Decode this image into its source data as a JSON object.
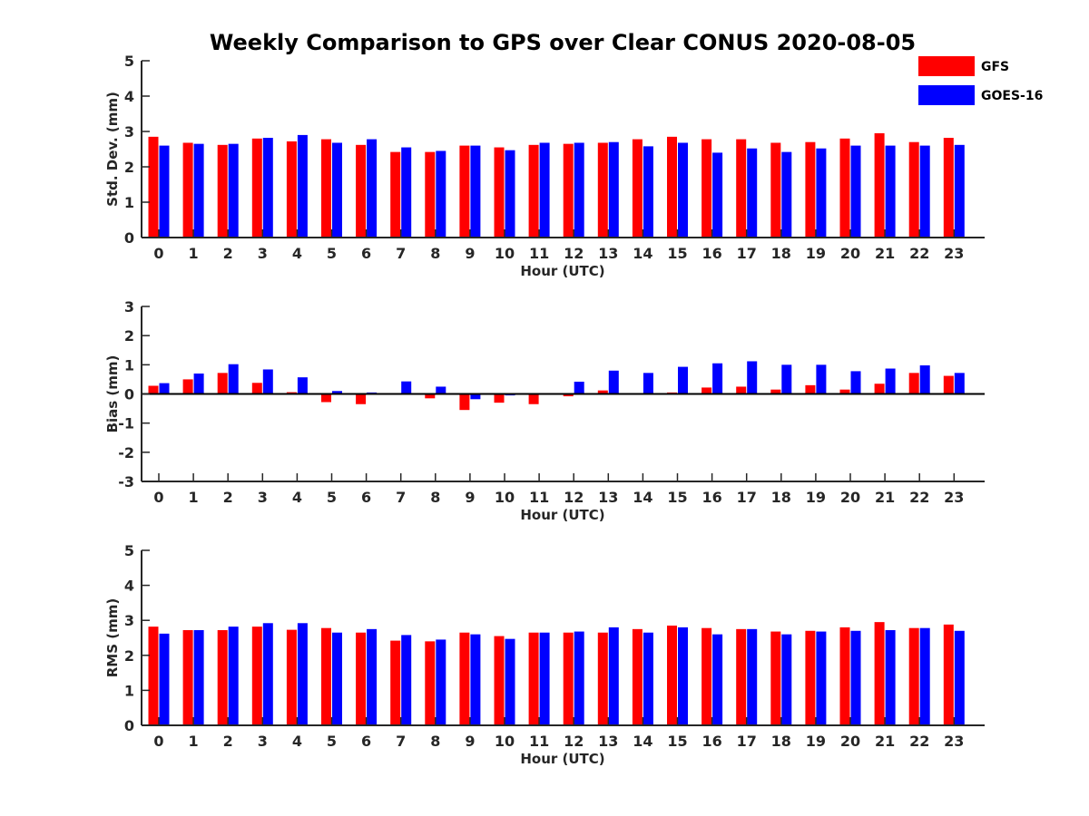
{
  "title": "Weekly Comparison to GPS over Clear CONUS 2020-08-05",
  "colors": {
    "GFS": "#ff0000",
    "GOES-16": "#0000ff"
  },
  "legend": {
    "placement": "top-right",
    "entries": [
      "GFS",
      "GOES-16"
    ]
  },
  "chart_data": [
    {
      "type": "bar",
      "xlabel": "Hour (UTC)",
      "ylabel": "Std. Dev. (mm)",
      "ylim": [
        0,
        5
      ],
      "yticks": [
        0,
        1,
        2,
        3,
        4,
        5
      ],
      "categories": [
        "0",
        "1",
        "2",
        "3",
        "4",
        "5",
        "6",
        "7",
        "8",
        "9",
        "10",
        "11",
        "12",
        "13",
        "14",
        "15",
        "16",
        "17",
        "18",
        "19",
        "20",
        "21",
        "22",
        "23"
      ],
      "series": [
        {
          "name": "GFS",
          "values": [
            2.85,
            2.68,
            2.62,
            2.8,
            2.72,
            2.78,
            2.62,
            2.42,
            2.42,
            2.6,
            2.55,
            2.62,
            2.65,
            2.68,
            2.78,
            2.85,
            2.78,
            2.78,
            2.68,
            2.7,
            2.8,
            2.95,
            2.7,
            2.82
          ]
        },
        {
          "name": "GOES-16",
          "values": [
            2.6,
            2.65,
            2.65,
            2.82,
            2.9,
            2.68,
            2.78,
            2.55,
            2.45,
            2.6,
            2.47,
            2.68,
            2.68,
            2.7,
            2.58,
            2.68,
            2.4,
            2.52,
            2.42,
            2.52,
            2.6,
            2.6,
            2.6,
            2.62
          ]
        }
      ]
    },
    {
      "type": "bar",
      "xlabel": "Hour (UTC)",
      "ylabel": "Bias (mm)",
      "ylim": [
        -3,
        3
      ],
      "yticks": [
        -3,
        -2,
        -1,
        0,
        1,
        2,
        3
      ],
      "categories": [
        "0",
        "1",
        "2",
        "3",
        "4",
        "5",
        "6",
        "7",
        "8",
        "9",
        "10",
        "11",
        "12",
        "13",
        "14",
        "15",
        "16",
        "17",
        "18",
        "19",
        "20",
        "21",
        "22",
        "23"
      ],
      "series": [
        {
          "name": "GFS",
          "values": [
            0.28,
            0.5,
            0.72,
            0.38,
            0.06,
            -0.28,
            -0.35,
            0.03,
            -0.15,
            -0.55,
            -0.3,
            -0.35,
            -0.08,
            0.12,
            0.0,
            0.05,
            0.22,
            0.25,
            0.15,
            0.3,
            0.15,
            0.35,
            0.72,
            0.62
          ]
        },
        {
          "name": "GOES-16",
          "values": [
            0.37,
            0.7,
            1.02,
            0.84,
            0.57,
            0.1,
            0.05,
            0.43,
            0.25,
            -0.18,
            -0.05,
            0.02,
            0.42,
            0.8,
            0.72,
            0.93,
            1.05,
            1.12,
            1.0,
            1.0,
            0.78,
            0.87,
            0.98,
            0.72
          ]
        }
      ]
    },
    {
      "type": "bar",
      "xlabel": "Hour (UTC)",
      "ylabel": "RMS (mm)",
      "ylim": [
        0,
        5
      ],
      "yticks": [
        0,
        1,
        2,
        3,
        4,
        5
      ],
      "categories": [
        "0",
        "1",
        "2",
        "3",
        "4",
        "5",
        "6",
        "7",
        "8",
        "9",
        "10",
        "11",
        "12",
        "13",
        "14",
        "15",
        "16",
        "17",
        "18",
        "19",
        "20",
        "21",
        "22",
        "23"
      ],
      "series": [
        {
          "name": "GFS",
          "values": [
            2.82,
            2.72,
            2.72,
            2.82,
            2.73,
            2.78,
            2.65,
            2.42,
            2.4,
            2.65,
            2.55,
            2.65,
            2.65,
            2.65,
            2.75,
            2.85,
            2.78,
            2.75,
            2.68,
            2.7,
            2.8,
            2.95,
            2.78,
            2.88
          ]
        },
        {
          "name": "GOES-16",
          "values": [
            2.62,
            2.72,
            2.82,
            2.92,
            2.92,
            2.65,
            2.75,
            2.58,
            2.45,
            2.6,
            2.47,
            2.65,
            2.68,
            2.8,
            2.65,
            2.8,
            2.6,
            2.75,
            2.6,
            2.68,
            2.7,
            2.72,
            2.78,
            2.7
          ]
        }
      ]
    }
  ]
}
